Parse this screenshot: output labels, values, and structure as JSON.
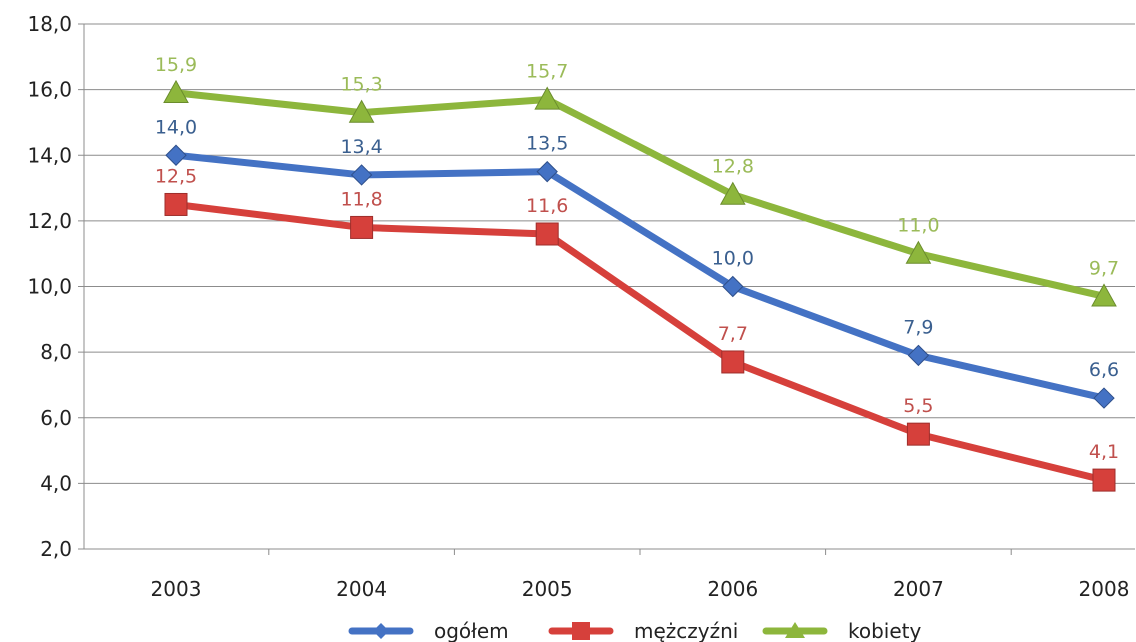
{
  "chart_data": {
    "type": "line",
    "title": "",
    "xlabel": "",
    "ylabel": "",
    "categories": [
      "2003",
      "2004",
      "2005",
      "2006",
      "2007",
      "2008"
    ],
    "ylim": [
      2.0,
      18.0
    ],
    "ytick_step": 2.0,
    "yticks": [
      "2,0",
      "4,0",
      "6,0",
      "8,0",
      "10,0",
      "12,0",
      "14,0",
      "16,0",
      "18,0"
    ],
    "grid": true,
    "legend_position": "bottom",
    "series": [
      {
        "name": "ogółem",
        "color": "#4472C4",
        "label_color": "#3A5F8F",
        "marker": "diamond",
        "values": [
          14.0,
          13.4,
          13.5,
          10.0,
          7.9,
          6.6
        ],
        "labels": [
          "14,0",
          "13,4",
          "13,5",
          "10,0",
          "7,9",
          "6,6"
        ]
      },
      {
        "name": "mężczyźni",
        "color": "#D6403B",
        "label_color": "#C0504D",
        "marker": "square",
        "values": [
          12.5,
          11.8,
          11.6,
          7.7,
          5.5,
          4.1
        ],
        "labels": [
          "12,5",
          "11,8",
          "11,6",
          "7,7",
          "5,5",
          "4,1"
        ]
      },
      {
        "name": "kobiety",
        "color": "#8DB63C",
        "label_color": "#9BBB59",
        "marker": "triangle",
        "values": [
          15.9,
          15.3,
          15.7,
          12.8,
          11.0,
          9.7
        ],
        "labels": [
          "15,9",
          "15,3",
          "15,7",
          "12,8",
          "11,0",
          "9,7"
        ]
      }
    ]
  }
}
